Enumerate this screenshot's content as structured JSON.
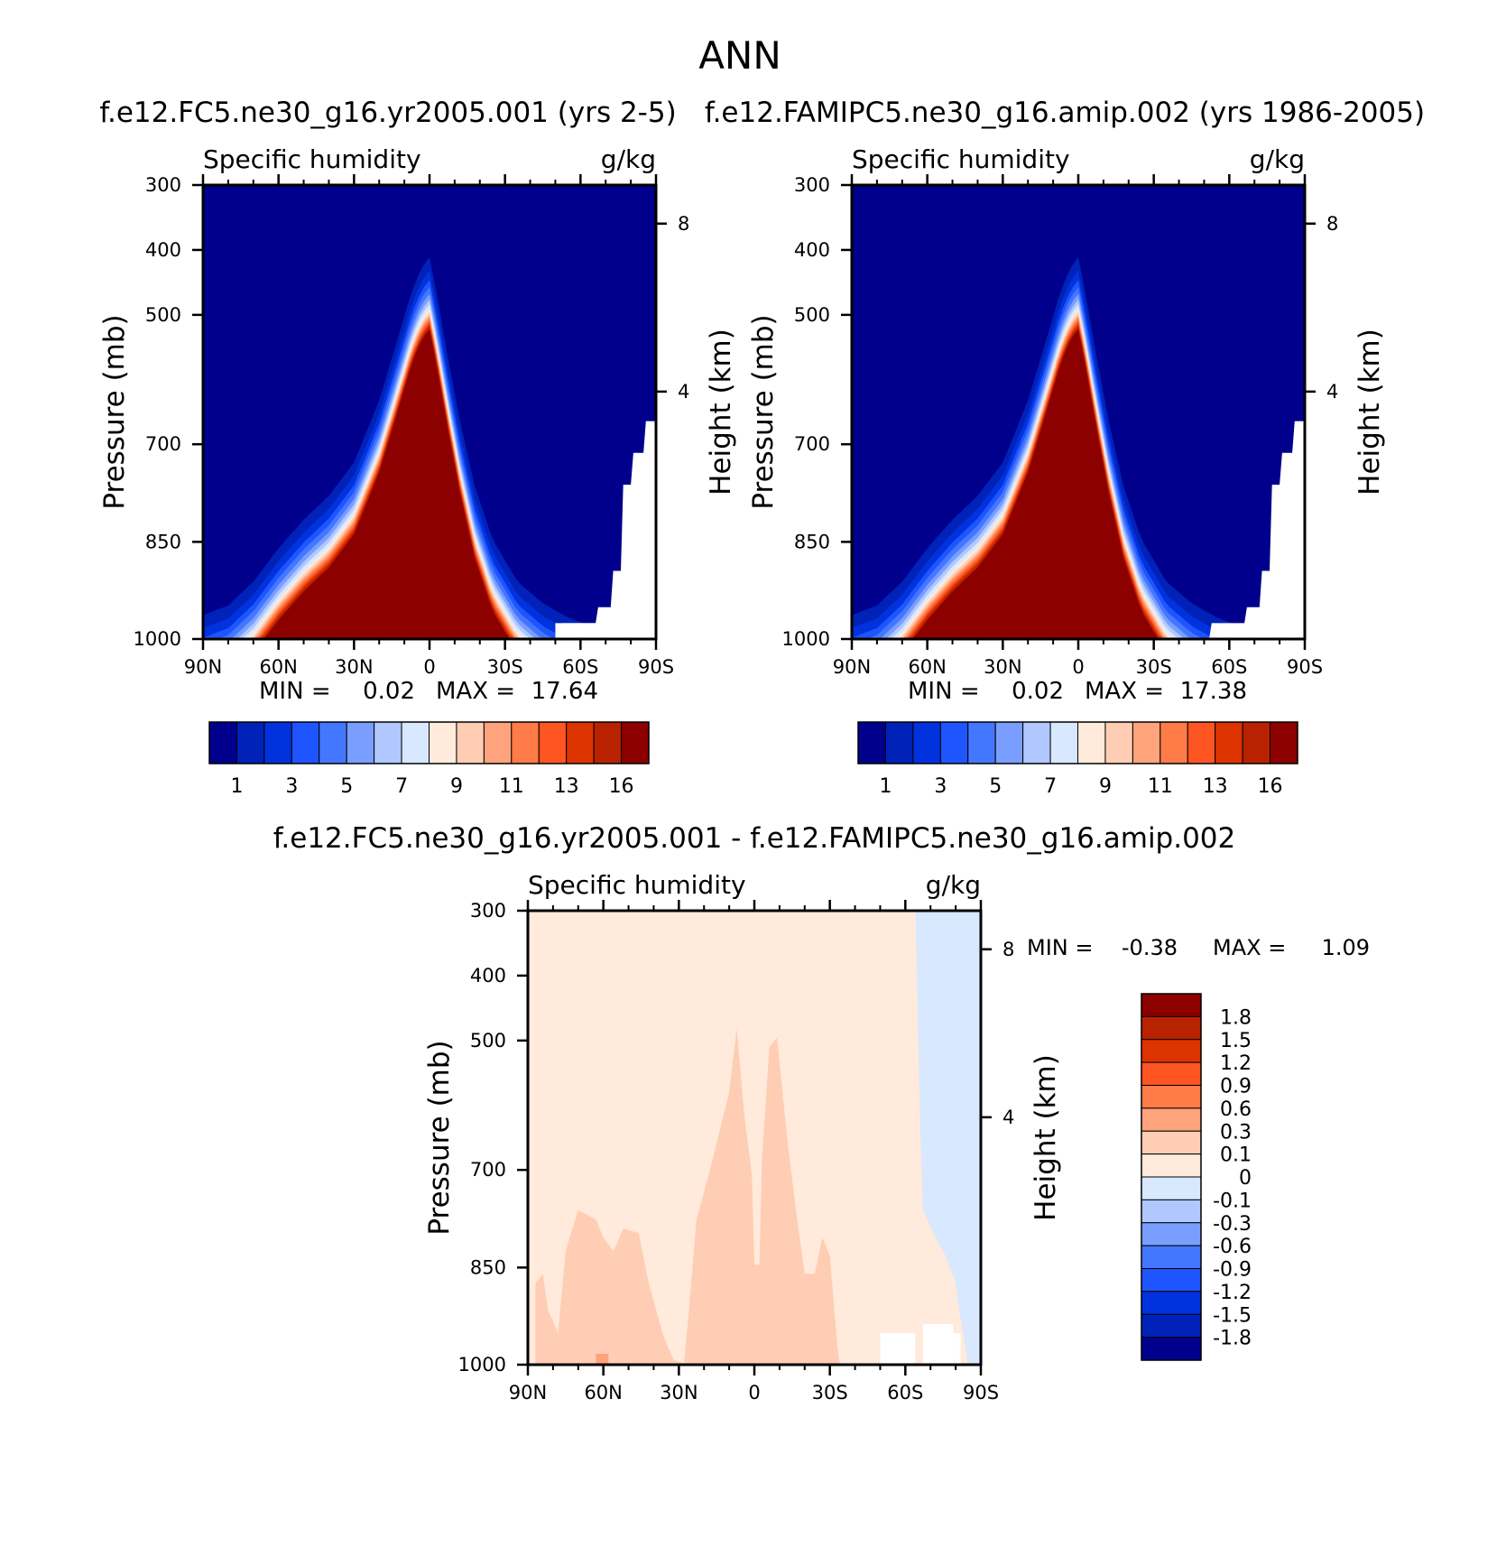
{
  "figure": {
    "title": "ANN"
  },
  "chart_data": [
    {
      "type": "heatmap",
      "title": "f.e12.FC5.ne30_g16.yr2005.001 (yrs 2-5)",
      "left_label": "Specific humidity",
      "right_label": "g/kg",
      "xlabel": "",
      "ylabel": "Pressure (mb)",
      "y2label": "Height (km)",
      "x_ticks": [
        "90N",
        "60N",
        "30N",
        "0",
        "30S",
        "60S",
        "90S"
      ],
      "x_tick_values": [
        90,
        60,
        30,
        0,
        -30,
        -60,
        -90
      ],
      "xlim": [
        90,
        -90
      ],
      "y_ticks": [
        "300",
        "400",
        "500",
        "700",
        "850",
        "1000"
      ],
      "y_tick_values": [
        300,
        400,
        500,
        700,
        850,
        1000
      ],
      "ylim": [
        1000,
        300
      ],
      "y2_ticks": [
        "8",
        "4"
      ],
      "y2_tick_values": [
        8,
        4
      ],
      "min_label": "MIN =",
      "min_value": "0.02",
      "max_label": "MAX =",
      "max_value": "17.64",
      "colorbar_orientation": "horizontal",
      "colorbar_labels": [
        "1",
        "3",
        "5",
        "7",
        "9",
        "11",
        "13",
        "16"
      ],
      "colors": [
        "#00008c",
        "#0022b8",
        "#0033dd",
        "#1e55ff",
        "#4477ff",
        "#7a9eff",
        "#b0c8ff",
        "#d8e8ff",
        "#ffeadb",
        "#ffcdb3",
        "#ffa37d",
        "#ff7b47",
        "#ff5522",
        "#dd3300",
        "#b82200",
        "#8c0000"
      ]
    },
    {
      "type": "heatmap",
      "title": "f.e12.FAMIPC5.ne30_g16.amip.002 (yrs 1986-2005)",
      "left_label": "Specific humidity",
      "right_label": "g/kg",
      "xlabel": "",
      "ylabel": "Pressure (mb)",
      "y2label": "Height (km)",
      "x_ticks": [
        "90N",
        "60N",
        "30N",
        "0",
        "30S",
        "60S",
        "90S"
      ],
      "x_tick_values": [
        90,
        60,
        30,
        0,
        -30,
        -60,
        -90
      ],
      "xlim": [
        90,
        -90
      ],
      "y_ticks": [
        "300",
        "400",
        "500",
        "700",
        "850",
        "1000"
      ],
      "y_tick_values": [
        300,
        400,
        500,
        700,
        850,
        1000
      ],
      "ylim": [
        1000,
        300
      ],
      "y2_ticks": [
        "8",
        "4"
      ],
      "y2_tick_values": [
        8,
        4
      ],
      "min_label": "MIN =",
      "min_value": "0.02",
      "max_label": "MAX =",
      "max_value": "17.38",
      "colorbar_orientation": "horizontal",
      "colorbar_labels": [
        "1",
        "3",
        "5",
        "7",
        "9",
        "11",
        "13",
        "16"
      ],
      "colors": [
        "#00008c",
        "#0022b8",
        "#0033dd",
        "#1e55ff",
        "#4477ff",
        "#7a9eff",
        "#b0c8ff",
        "#d8e8ff",
        "#ffeadb",
        "#ffcdb3",
        "#ffa37d",
        "#ff7b47",
        "#ff5522",
        "#dd3300",
        "#b82200",
        "#8c0000"
      ]
    },
    {
      "type": "heatmap",
      "title": "f.e12.FC5.ne30_g16.yr2005.001 - f.e12.FAMIPC5.ne30_g16.amip.002",
      "left_label": "Specific humidity",
      "right_label": "g/kg",
      "xlabel": "",
      "ylabel": "Pressure (mb)",
      "y2label": "Height (km)",
      "x_ticks": [
        "90N",
        "60N",
        "30N",
        "0",
        "30S",
        "60S",
        "90S"
      ],
      "x_tick_values": [
        90,
        60,
        30,
        0,
        -30,
        -60,
        -90
      ],
      "xlim": [
        90,
        -90
      ],
      "y_ticks": [
        "300",
        "400",
        "500",
        "700",
        "850",
        "1000"
      ],
      "y_tick_values": [
        300,
        400,
        500,
        700,
        850,
        1000
      ],
      "ylim": [
        1000,
        300
      ],
      "y2_ticks": [
        "8",
        "4"
      ],
      "y2_tick_values": [
        8,
        4
      ],
      "min_label": "MIN =",
      "min_value": "-0.38",
      "max_label": "MAX =",
      "max_value": "1.09",
      "colorbar_orientation": "vertical",
      "colorbar_labels": [
        "1.8",
        "1.5",
        "1.2",
        "0.9",
        "0.6",
        "0.3",
        "0.1",
        "0",
        "-0.1",
        "-0.3",
        "-0.6",
        "-0.9",
        "-1.2",
        "-1.5",
        "-1.8"
      ],
      "colors": [
        "#8c0000",
        "#b82200",
        "#dd3300",
        "#ff5522",
        "#ff7b47",
        "#ffa37d",
        "#ffcdb3",
        "#ffeadb",
        "#d8e8ff",
        "#b0c8ff",
        "#7a9eff",
        "#4477ff",
        "#1e55ff",
        "#0033dd",
        "#0022b8",
        "#00008c"
      ]
    }
  ]
}
